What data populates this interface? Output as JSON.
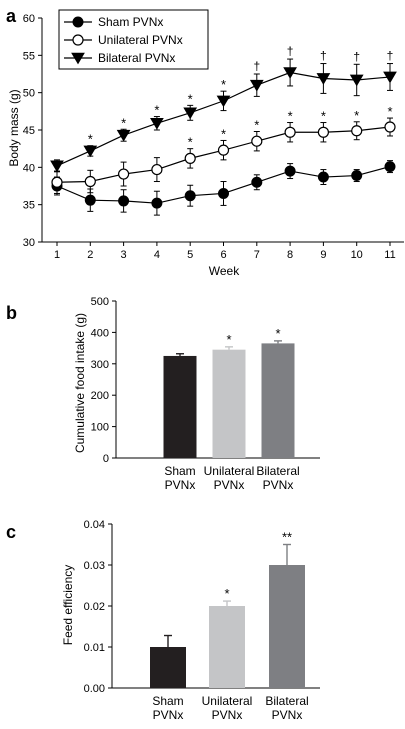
{
  "chart_data": [
    {
      "panel": "a",
      "type": "line",
      "xlabel": "Week",
      "ylabel": "Body mass (g)",
      "xlim": [
        1,
        11
      ],
      "ylim": [
        30,
        60
      ],
      "xticks": [
        "1",
        "2",
        "3",
        "4",
        "5",
        "6",
        "7",
        "8",
        "9",
        "10",
        "11"
      ],
      "yticks": [
        "30",
        "35",
        "40",
        "45",
        "50",
        "55",
        "60"
      ],
      "legend_position": "top-left",
      "x": [
        1,
        2,
        3,
        4,
        5,
        6,
        7,
        8,
        9,
        10,
        11
      ],
      "series": [
        {
          "name": "Sham PVNx",
          "marker": "filled-circle",
          "values": [
            37.5,
            35.6,
            35.5,
            35.2,
            36.2,
            36.5,
            38.0,
            39.5,
            38.7,
            38.9,
            40.1
          ],
          "errors": [
            1.2,
            1.5,
            1.5,
            1.6,
            1.4,
            1.6,
            1.0,
            1.0,
            1.0,
            0.8,
            0.8
          ],
          "annotations": []
        },
        {
          "name": "Unilateral PVNx",
          "marker": "open-circle",
          "values": [
            38.0,
            38.1,
            39.1,
            39.7,
            41.2,
            42.3,
            43.5,
            44.7,
            44.7,
            44.9,
            45.4
          ],
          "errors": [
            1.5,
            1.5,
            1.6,
            1.6,
            1.3,
            1.3,
            1.3,
            1.3,
            1.3,
            1.2,
            1.2
          ],
          "annotations": [
            "",
            "",
            "",
            "",
            "*",
            "*",
            "*",
            "*",
            "*",
            "*",
            "*"
          ]
        },
        {
          "name": "Bilateral PVNx",
          "marker": "filled-triangle-down",
          "values": [
            40.2,
            42.2,
            44.3,
            45.9,
            47.3,
            48.9,
            51.0,
            52.7,
            51.9,
            51.7,
            52.1
          ],
          "errors": [
            0.8,
            0.7,
            0.8,
            0.9,
            1.0,
            1.3,
            1.5,
            1.8,
            2.0,
            2.1,
            1.8
          ],
          "annotations": [
            "",
            "*",
            "*",
            "*",
            "*",
            "*",
            "†",
            "†",
            "†",
            "†",
            "†"
          ]
        }
      ]
    },
    {
      "panel": "b",
      "type": "bar",
      "ylabel": "Cumulative food intake (g)",
      "ylim": [
        0,
        500
      ],
      "yticks": [
        "0",
        "100",
        "200",
        "300",
        "400",
        "500"
      ],
      "categories": [
        [
          "Sham",
          "PVNx"
        ],
        [
          "Unilateral",
          "PVNx"
        ],
        [
          "Bilateral",
          "PVNx"
        ]
      ],
      "values": [
        325,
        345,
        365
      ],
      "errors": [
        7,
        9,
        8
      ],
      "colors": [
        "#231f20",
        "#c4c5c7",
        "#7e7f83"
      ],
      "annotations": [
        "",
        "*",
        "*"
      ]
    },
    {
      "panel": "c",
      "type": "bar",
      "ylabel": "Feed efficiency",
      "ylim": [
        0,
        0.04
      ],
      "yticks": [
        "0.00",
        "0.01",
        "0.02",
        "0.03",
        "0.04"
      ],
      "categories": [
        [
          "Sham",
          "PVNx"
        ],
        [
          "Unilateral",
          "PVNx"
        ],
        [
          "Bilateral",
          "PVNx"
        ]
      ],
      "values": [
        0.01,
        0.02,
        0.03
      ],
      "errors": [
        0.0028,
        0.0012,
        0.005
      ],
      "colors": [
        "#231f20",
        "#c4c5c7",
        "#7e7f83"
      ],
      "annotations": [
        "",
        "*",
        "**"
      ]
    }
  ]
}
